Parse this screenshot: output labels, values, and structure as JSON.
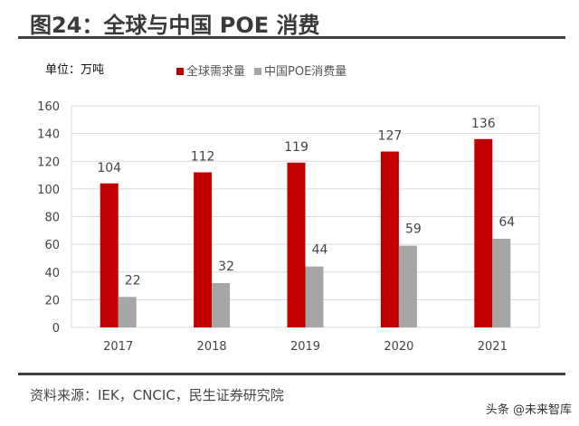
{
  "title": "图24：全球与中国 POE 消费",
  "unit_label": "单位：万吨",
  "source": "资料来源：IEK，CNCIC，民生证券研究院",
  "watermark": "头条 @未来智库",
  "chart_data": {
    "type": "bar",
    "title": "",
    "xlabel": "",
    "ylabel": "",
    "categories": [
      "2017",
      "2018",
      "2019",
      "2020",
      "2021"
    ],
    "series": [
      {
        "name": "全球需求量",
        "values": [
          104,
          112,
          119,
          127,
          136
        ],
        "color": "#c00000"
      },
      {
        "name": "中国POE消费量",
        "values": [
          22,
          32,
          44,
          59,
          64
        ],
        "color": "#a6a6a6"
      }
    ],
    "ylim": [
      0,
      160
    ],
    "yticks": [
      0,
      20,
      40,
      60,
      80,
      100,
      120,
      140,
      160
    ],
    "grid": true,
    "legend": "top",
    "data_labels": true
  }
}
